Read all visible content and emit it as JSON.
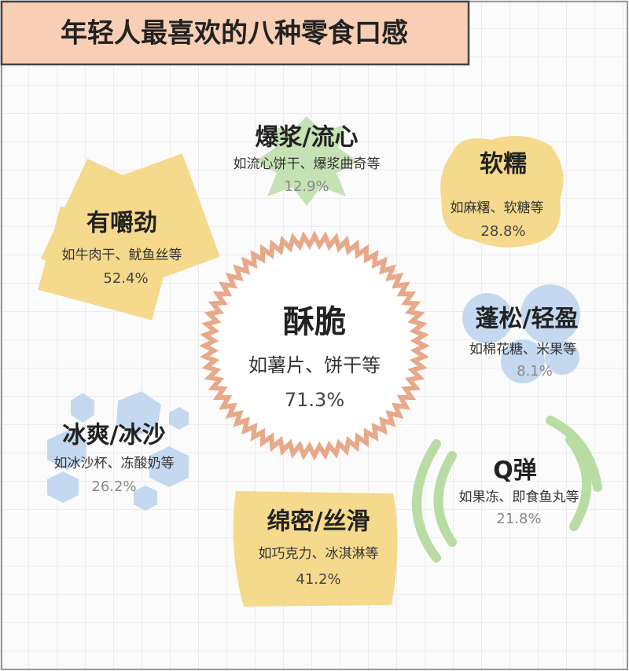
{
  "title": "年轻人最喜欢的八种零食口感",
  "items": [
    {
      "name": "爆浆/流心",
      "example": "如流心饼干、爆浆曲奇等",
      "share": "12.9%"
    },
    {
      "name": "软糯",
      "example": "如麻糬、软糖等",
      "share": "28.8%"
    },
    {
      "name": "有嚼劲",
      "example": "如牛肉干、鱿鱼丝等",
      "share": "52.4%"
    },
    {
      "name": "酥脆",
      "example": "如薯片、饼干等",
      "share": "71.3%"
    },
    {
      "name": "蓬松/轻盈",
      "example": "如棉花糖、米果等",
      "share": "8.1%"
    },
    {
      "name": "冰爽/冰沙",
      "example": "如冰沙杯、冻酸奶等",
      "share": "26.2%"
    },
    {
      "name": "Q弹",
      "example": "如果冻、即食鱼丸等",
      "share": "21.8%"
    },
    {
      "name": "绵密/丝滑",
      "example": "如巧克力、冰淇淋等",
      "share": "41.2%"
    }
  ]
}
